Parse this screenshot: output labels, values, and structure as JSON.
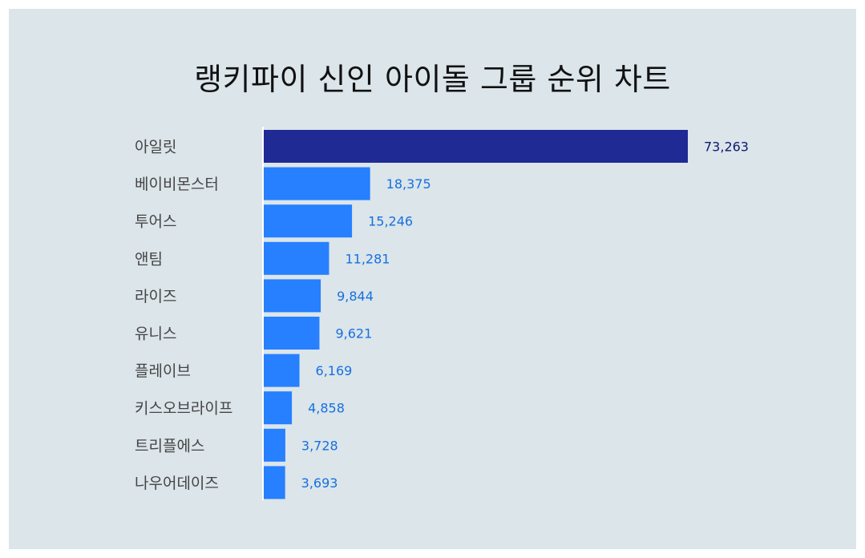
{
  "colors": {
    "background": "#dbe5ea",
    "top_bar": "#1f2a94",
    "bar": "#2680ff",
    "top_value_label": "#0b1a6e",
    "value_label": "#1670de",
    "axis": "#ffffff"
  },
  "chart_data": {
    "type": "bar",
    "orientation": "horizontal",
    "title": "랭키파이 신인 아이돌 그룹 순위 차트",
    "categories": [
      "아일릿",
      "베이비몬스터",
      "투어스",
      "앤팀",
      "라이즈",
      "유니스",
      "플레이브",
      "키스오브라이프",
      "트리플에스",
      "나우어데이즈"
    ],
    "values": [
      73263,
      18375,
      15246,
      11281,
      9844,
      9621,
      6169,
      4858,
      3728,
      3693
    ],
    "value_labels": [
      "73,263",
      "18,375",
      "15,246",
      "11,281",
      "9,844",
      "9,621",
      "6,169",
      "4,858",
      "3,728",
      "3,693"
    ],
    "xlim": [
      0,
      73263
    ],
    "grid": false,
    "legend": "none"
  }
}
